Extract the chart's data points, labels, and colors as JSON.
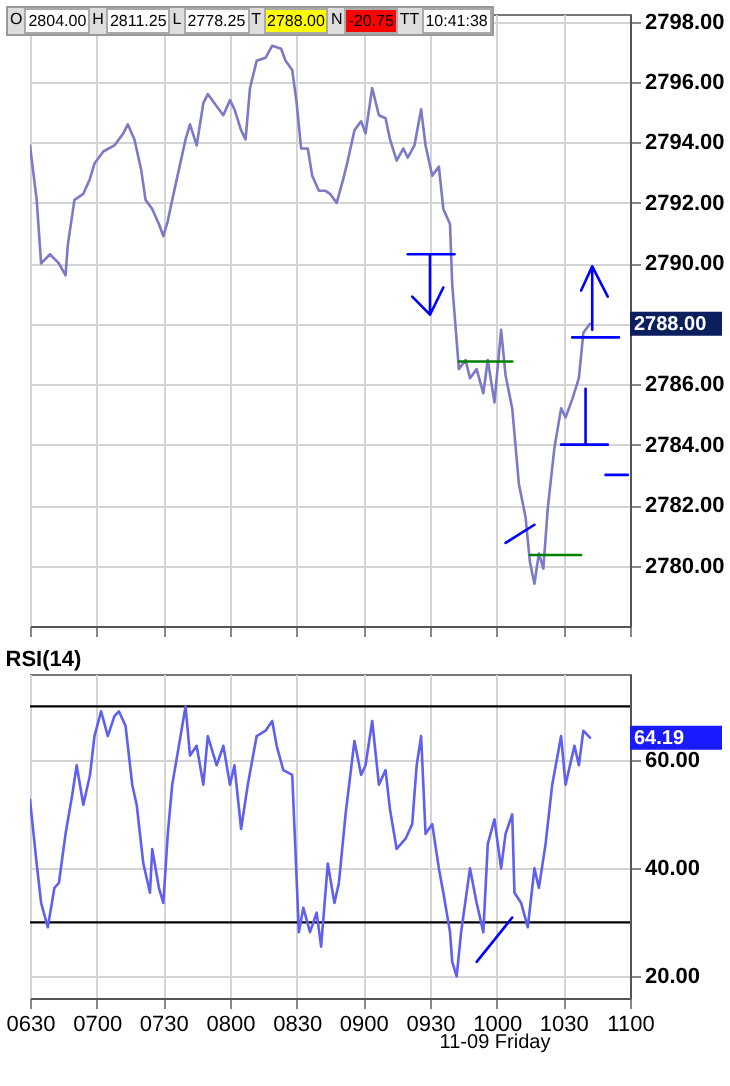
{
  "chart_data": [
    {
      "type": "line",
      "xlim": [
        "--11-09T06:30",
        "--11-09T11:00"
      ],
      "xticks": [
        {
          "value": "--11-09T06:30",
          "label": "0630"
        },
        {
          "value": "--11-09T07:00",
          "label": "0700"
        },
        {
          "value": "--11-09T07:30",
          "label": "0730"
        },
        {
          "value": "--11-09T08:00",
          "label": "0800"
        },
        {
          "value": "--11-09T08:30",
          "label": "0830"
        },
        {
          "value": "--11-09T09:00",
          "label": "0900"
        },
        {
          "value": "--11-09T09:30",
          "label": "0930"
        },
        {
          "value": "--11-09T10:00",
          "label": "1000"
        },
        {
          "value": "--11-09T10:30",
          "label": "1030"
        },
        {
          "value": "--11-09T11:00",
          "label": "1100"
        }
      ],
      "ylim": [
        2778,
        2798.25
      ],
      "yticks": [
        {
          "value": 2780,
          "label": "2780.00"
        },
        {
          "value": 2782,
          "label": "2782.00"
        },
        {
          "value": 2784,
          "label": "2784.00"
        },
        {
          "value": 2786,
          "label": "2786.00"
        },
        {
          "value": 2788,
          "label": null
        },
        {
          "value": 2790,
          "label": "2790.00"
        },
        {
          "value": 2792,
          "label": "2792.00"
        },
        {
          "value": 2794,
          "label": "2794.00"
        },
        {
          "value": 2796,
          "label": "2796.00"
        },
        {
          "value": 2798,
          "label": "2798.00"
        }
      ],
      "tick_labels": "y",
      "grid": true,
      "marker": "none",
      "line_style": "solid",
      "annotations": [
        "O",
        "2804.00",
        "H",
        "2811.25",
        "L",
        "2778.25",
        "T",
        "2788.00",
        "N",
        "-20.75",
        "TT",
        "10:41:38",
        "2788.00"
      ],
      "series": [
        {
          "color": "#7a7ac6",
          "x": [
            "--11-09T06:30",
            "--11-09T06:33",
            "--11-09T06:35",
            "--11-09T06:39",
            "--11-09T06:43",
            "--11-09T06:46",
            "--11-09T06:47",
            "--11-09T06:50",
            "--11-09T06:54",
            "--11-09T06:57",
            "--11-09T06:59",
            "--11-09T07:03",
            "--11-09T07:08",
            "--11-09T07:12",
            "--11-09T07:14",
            "--11-09T07:17",
            "--11-09T07:20",
            "--11-09T07:22",
            "--11-09T07:25",
            "--11-09T07:28",
            "--11-09T07:30",
            "--11-09T07:32",
            "--11-09T07:34",
            "--11-09T07:37",
            "--11-09T07:40",
            "--11-09T07:42",
            "--11-09T07:45",
            "--11-09T07:48",
            "--11-09T07:50",
            "--11-09T07:54",
            "--11-09T07:57",
            "--11-09T08:00",
            "--11-09T08:02",
            "--11-09T08:05",
            "--11-09T08:07",
            "--11-09T08:09",
            "--11-09T08:12",
            "--11-09T08:16",
            "--11-09T08:19",
            "--11-09T08:23",
            "--11-09T08:25",
            "--11-09T08:28",
            "--11-09T08:30",
            "--11-09T08:32",
            "--11-09T08:35",
            "--11-09T08:37",
            "--11-09T08:40",
            "--11-09T08:43",
            "--11-09T08:45",
            "--11-09T08:48",
            "--11-09T08:51",
            "--11-09T08:53",
            "--11-09T08:56",
            "--11-09T08:59",
            "--11-09T09:01",
            "--11-09T09:04",
            "--11-09T09:07",
            "--11-09T09:10",
            "--11-09T09:12",
            "--11-09T09:15",
            "--11-09T09:18",
            "--11-09T09:20",
            "--11-09T09:23",
            "--11-09T09:26",
            "--11-09T09:28",
            "--11-09T09:31",
            "--11-09T09:34",
            "--11-09T09:36",
            "--11-09T09:39",
            "--11-09T09:40",
            "--11-09T09:43",
            "--11-09T09:46",
            "--11-09T09:48",
            "--11-09T09:51",
            "--11-09T09:54",
            "--11-09T09:56",
            "--11-09T09:59",
            "--11-09T10:02",
            "--11-09T10:04",
            "--11-09T10:07",
            "--11-09T10:10",
            "--11-09T10:13",
            "--11-09T10:15",
            "--11-09T10:17",
            "--11-09T10:19",
            "--11-09T10:21",
            "--11-09T10:23",
            "--11-09T10:26",
            "--11-09T10:29",
            "--11-09T10:31",
            "--11-09T10:34",
            "--11-09T10:37",
            "--11-09T10:39",
            "--11-09T10:42"
          ],
          "values": [
            2793.9,
            2792.1,
            2790,
            2790.3,
            2790,
            2789.6,
            2790.6,
            2792.1,
            2792.3,
            2792.8,
            2793.3,
            2793.7,
            2793.9,
            2794.3,
            2794.6,
            2794.1,
            2793.1,
            2792.1,
            2791.8,
            2791.3,
            2790.9,
            2791.4,
            2792.1,
            2793.1,
            2794.1,
            2794.6,
            2793.9,
            2795.3,
            2795.6,
            2795.2,
            2794.9,
            2795.4,
            2795.1,
            2794.4,
            2794.1,
            2795.8,
            2796.7,
            2796.8,
            2797.2,
            2797.1,
            2796.7,
            2796.4,
            2795.3,
            2793.8,
            2793.8,
            2792.9,
            2792.4,
            2792.4,
            2792.3,
            2792,
            2792.8,
            2793.4,
            2794.4,
            2794.7,
            2794.3,
            2795.8,
            2794.9,
            2794.8,
            2794.1,
            2793.4,
            2793.8,
            2793.5,
            2793.9,
            2795.1,
            2793.9,
            2792.9,
            2793.2,
            2791.8,
            2791.3,
            2789.3,
            2786.5,
            2786.8,
            2786.2,
            2786.5,
            2785.7,
            2786.8,
            2785.4,
            2787.8,
            2786.3,
            2785.2,
            2782.7,
            2781.6,
            2780.1,
            2779.4,
            2780.4,
            2779.9,
            2781.9,
            2783.9,
            2785.2,
            2784.9,
            2785.5,
            2786.2,
            2787.7,
            2788
          ]
        },
        {
          "color": "#0000ff",
          "x": [
            "--11-09T09:20",
            "--11-09T09:41"
          ],
          "values": [
            2790.3,
            2790.3
          ]
        },
        {
          "color": "#0000ff",
          "x": [
            "--11-09T09:22",
            "--11-09T09:30",
            "--11-09T09:36",
            "--11-09T09:30",
            "--11-09T09:30"
          ],
          "values": [
            2788.9,
            2788.3,
            2789.2,
            2788.3,
            2790.3
          ]
        },
        {
          "color": "#0000ff",
          "x": [
            "--11-09T10:38",
            "--11-09T10:43",
            "--11-09T10:50",
            "--11-09T10:43",
            "--11-09T10:43"
          ],
          "values": [
            2789.1,
            2789.9,
            2788.9,
            2789.9,
            2787.8
          ]
        },
        {
          "color": "#0000ff",
          "x": [
            "--11-09T10:34",
            "--11-09T10:55"
          ],
          "values": [
            2787.55,
            2787.55
          ]
        },
        {
          "color": "#0000ff",
          "x": [
            "--11-09T10:40",
            "--11-09T10:40"
          ],
          "values": [
            2785.85,
            2784
          ]
        },
        {
          "color": "#0000ff",
          "x": [
            "--11-09T10:29",
            "--11-09T10:50"
          ],
          "values": [
            2784,
            2784
          ]
        },
        {
          "color": "#0000ff",
          "x": [
            "--11-09T10:49",
            "--11-09T10:59"
          ],
          "values": [
            2783,
            2783
          ]
        },
        {
          "color": "#0000ff",
          "x": [
            "--11-09T10:04",
            "--11-09T10:17"
          ],
          "values": [
            2780.75,
            2781.35
          ]
        },
        {
          "color": "#008000",
          "x": [
            "--11-09T09:43",
            "--11-09T10:07"
          ],
          "values": [
            2786.75,
            2786.75
          ]
        },
        {
          "color": "#008000",
          "x": [
            "--11-09T10:15",
            "--11-09T10:38"
          ],
          "values": [
            2780.35,
            2780.35
          ]
        }
      ]
    },
    {
      "type": "line",
      "title": "RSI(14)",
      "xlim": [
        "--11-09T06:30",
        "--11-09T11:00"
      ],
      "xticks": [
        {
          "value": "--11-09T06:30",
          "label": "0630"
        },
        {
          "value": "--11-09T07:00",
          "label": "0700"
        },
        {
          "value": "--11-09T07:30",
          "label": "0730"
        },
        {
          "value": "--11-09T08:00",
          "label": "0800"
        },
        {
          "value": "--11-09T08:30",
          "label": "0830"
        },
        {
          "value": "--11-09T09:00",
          "label": "0900"
        },
        {
          "value": "--11-09T09:30",
          "label": "0930"
        },
        {
          "value": "--11-09T10:00",
          "label": "1000"
        },
        {
          "value": "--11-09T10:30",
          "label": "1030"
        },
        {
          "value": "--11-09T11:00",
          "label": "1100"
        }
      ],
      "ylim": [
        16,
        76
      ],
      "yticks": [
        {
          "value": 20,
          "label": "20.00"
        },
        {
          "value": 40,
          "label": "40.00"
        },
        {
          "value": 60,
          "label": "60.00"
        }
      ],
      "grid": true,
      "marker": "none",
      "line_style": "solid",
      "ref_lines": [
        {
          "axis": "y",
          "value": 70,
          "color": "#000000"
        },
        {
          "axis": "y",
          "value": 30,
          "color": "#000000"
        }
      ],
      "annotations": [
        "64.19",
        "11-09 Friday"
      ],
      "series": [
        {
          "color": "#5f5ff0",
          "x": [
            "--11-09T06:30",
            "--11-09T06:33",
            "--11-09T06:35",
            "--11-09T06:38",
            "--11-09T06:41",
            "--11-09T06:43",
            "--11-09T06:46",
            "--11-09T06:49",
            "--11-09T06:51",
            "--11-09T06:54",
            "--11-09T06:57",
            "--11-09T06:59",
            "--11-09T07:02",
            "--11-09T07:05",
            "--11-09T07:08",
            "--11-09T07:10",
            "--11-09T07:13",
            "--11-09T07:16",
            "--11-09T07:18",
            "--11-09T07:21",
            "--11-09T07:24",
            "--11-09T07:25",
            "--11-09T07:28",
            "--11-09T07:30",
            "--11-09T07:32",
            "--11-09T07:34",
            "--11-09T07:37",
            "--11-09T07:40",
            "--11-09T07:42",
            "--11-09T07:45",
            "--11-09T07:48",
            "--11-09T07:50",
            "--11-09T07:54",
            "--11-09T07:57",
            "--11-09T08:00",
            "--11-09T08:02",
            "--11-09T08:05",
            "--11-09T08:08",
            "--11-09T08:12",
            "--11-09T08:16",
            "--11-09T08:19",
            "--11-09T08:21",
            "--11-09T08:24",
            "--11-09T08:28",
            "--11-09T08:31",
            "--11-09T08:33",
            "--11-09T08:36",
            "--11-09T08:39",
            "--11-09T08:41",
            "--11-09T08:44",
            "--11-09T08:47",
            "--11-09T08:49",
            "--11-09T08:52",
            "--11-09T08:56",
            "--11-09T08:59",
            "--11-09T09:01",
            "--11-09T09:04",
            "--11-09T09:07",
            "--11-09T09:10",
            "--11-09T09:12",
            "--11-09T09:15",
            "--11-09T09:19",
            "--11-09T09:22",
            "--11-09T09:24",
            "--11-09T09:26",
            "--11-09T09:28",
            "--11-09T09:31",
            "--11-09T09:34",
            "--11-09T09:36",
            "--11-09T09:39",
            "--11-09T09:40",
            "--11-09T09:42",
            "--11-09T09:44",
            "--11-09T09:48",
            "--11-09T09:51",
            "--11-09T09:54",
            "--11-09T09:56",
            "--11-09T09:59",
            "--11-09T10:02",
            "--11-09T10:04",
            "--11-09T10:07",
            "--11-09T10:08",
            "--11-09T10:11",
            "--11-09T10:14",
            "--11-09T10:17",
            "--11-09T10:19",
            "--11-09T10:22",
            "--11-09T10:25",
            "--11-09T10:29",
            "--11-09T10:31",
            "--11-09T10:35",
            "--11-09T10:37",
            "--11-09T10:39",
            "--11-09T10:42"
          ],
          "values": [
            52.7,
            40.9,
            33.6,
            29.1,
            36.4,
            37.3,
            46.4,
            53.6,
            59.1,
            51.8,
            57.3,
            64.5,
            69.1,
            64.5,
            68.2,
            69.1,
            66.4,
            55.5,
            51.8,
            40.9,
            35.5,
            43.6,
            36.4,
            33.6,
            46.4,
            55.5,
            62.7,
            70,
            60.9,
            62.7,
            55.5,
            64.5,
            59.1,
            62.7,
            55.5,
            59.1,
            47.3,
            55.5,
            64.5,
            65.5,
            67.3,
            62.7,
            58.2,
            57.3,
            28.2,
            32.7,
            28.2,
            31.8,
            25.5,
            40.9,
            33.6,
            37.3,
            50,
            63.6,
            57.3,
            59.1,
            67.3,
            55.5,
            58.2,
            50.9,
            43.6,
            45.5,
            48.2,
            59.1,
            64.5,
            46.4,
            48.2,
            40,
            35.5,
            28.2,
            22.7,
            20,
            28.2,
            40,
            33.6,
            28.2,
            44.5,
            49.1,
            40,
            46.4,
            50,
            35.5,
            33.6,
            29.1,
            40,
            36.4,
            44.5,
            55.5,
            64.5,
            55.5,
            62.7,
            59.1,
            65.5,
            64.2
          ]
        },
        {
          "color": "#0000ff",
          "x": [
            "--11-09T09:51",
            "--11-09T10:07"
          ],
          "values": [
            22.7,
            30.9
          ]
        }
      ]
    }
  ]
}
